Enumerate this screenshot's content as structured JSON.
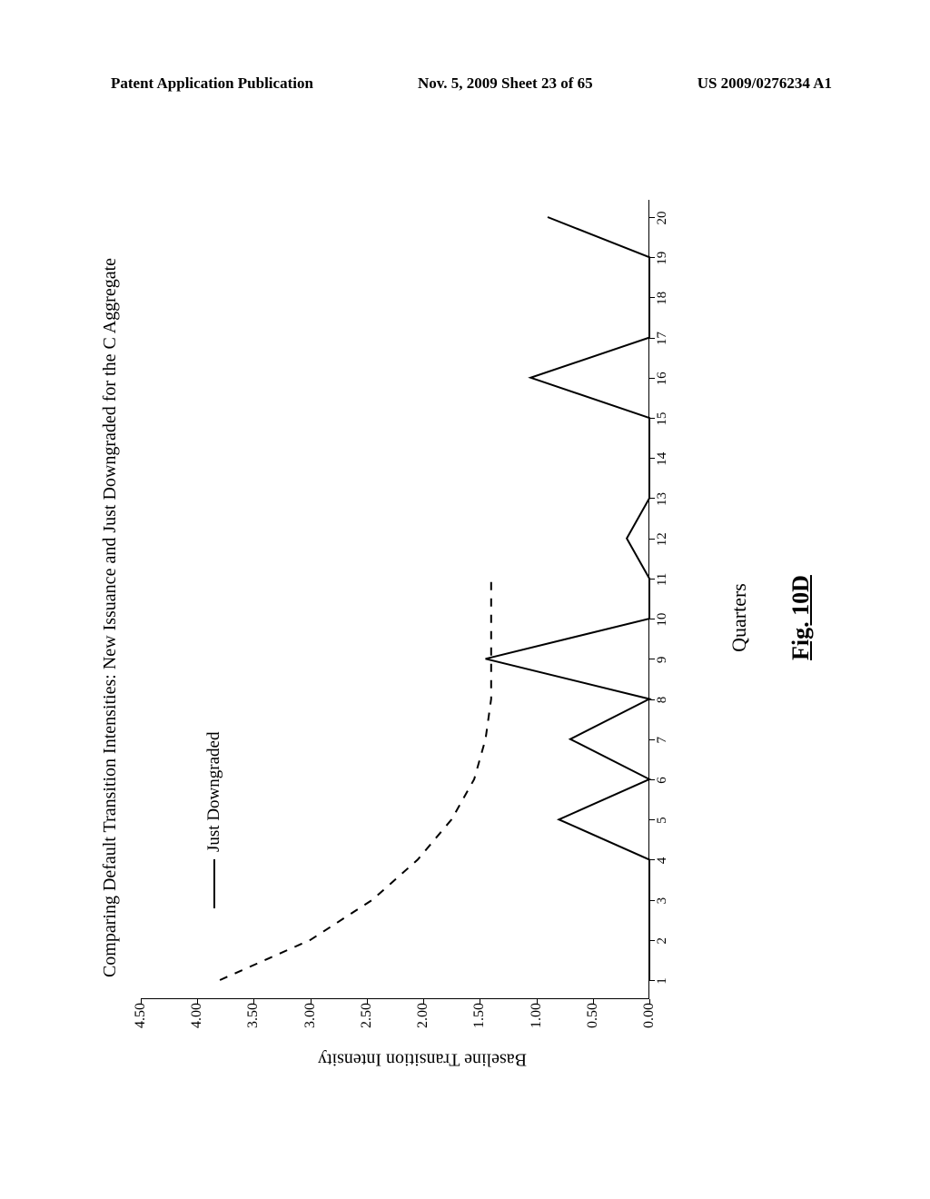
{
  "header": {
    "left": "Patent Application Publication",
    "center": "Nov. 5, 2009  Sheet 23 of 65",
    "right": "US 2009/0276234 A1"
  },
  "chart": {
    "type": "line",
    "title": "Comparing Default Transition Intensities:  New Issuance and Just Downgraded for the C Aggregate",
    "x_label": "Quarters",
    "y_label": "Baseline Transition Intensity",
    "figure_caption": "Fig. 10D",
    "ylim": [
      0.0,
      4.5
    ],
    "ytick_step": 0.5,
    "ytick_labels": [
      "0.00",
      "0.50",
      "1.00",
      "1.50",
      "2.00",
      "2.50",
      "3.00",
      "3.50",
      "4.00",
      "4.50"
    ],
    "xticks": [
      1,
      2,
      3,
      4,
      5,
      6,
      7,
      8,
      9,
      10,
      11,
      12,
      13,
      14,
      15,
      16,
      17,
      18,
      19,
      20
    ],
    "legend": {
      "label": "Just Downgraded"
    },
    "series": [
      {
        "name": "Just Downgraded",
        "style": "solid",
        "color": "#000000",
        "width": 2,
        "x": [
          1,
          2,
          3,
          4,
          5,
          6,
          7,
          8,
          9,
          10,
          11,
          12,
          13,
          14,
          15,
          16,
          17,
          18,
          19,
          20
        ],
        "y": [
          0.0,
          0.0,
          0.0,
          0.0,
          0.8,
          0.0,
          0.7,
          0.0,
          1.45,
          0.0,
          0.0,
          0.2,
          0.0,
          0.0,
          0.0,
          1.05,
          0.0,
          0.0,
          0.0,
          0.9
        ]
      },
      {
        "name": "New Issuance",
        "style": "dashed",
        "color": "#000000",
        "width": 2,
        "x": [
          1,
          2,
          3,
          4,
          5,
          6,
          7,
          8,
          9,
          10,
          11
        ],
        "y": [
          3.8,
          3.0,
          2.45,
          2.05,
          1.75,
          1.55,
          1.45,
          1.4,
          1.4,
          1.4,
          1.4
        ]
      }
    ],
    "background_color": "#ffffff",
    "axis_color": "#000000",
    "title_fontsize": 20,
    "label_fontsize": 20,
    "tick_fontsize": 16
  }
}
